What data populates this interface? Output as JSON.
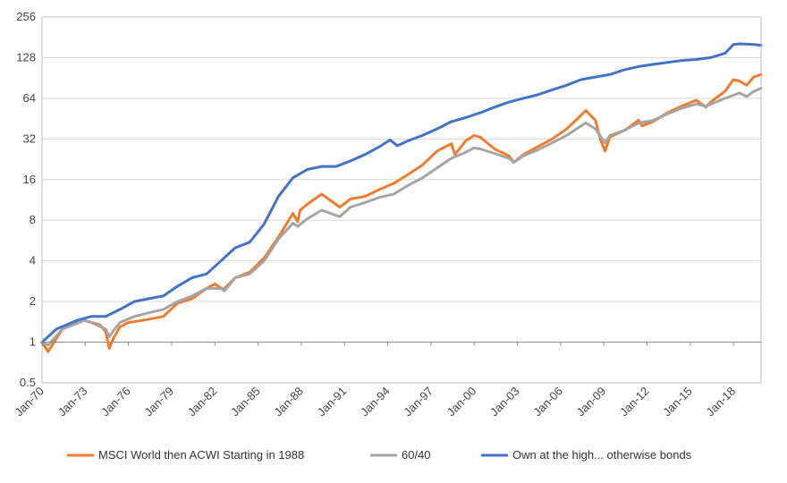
{
  "chart_data": {
    "type": "line",
    "y_scale": "log2",
    "ylim": [
      0.5,
      256
    ],
    "y_ticks": [
      "0.5",
      "1",
      "2",
      "4",
      "8",
      "16",
      "32",
      "64",
      "128",
      "256"
    ],
    "x_ticks": [
      "Jan-70",
      "Jan-73",
      "Jan-76",
      "Jan-79",
      "Jan-82",
      "Jan-85",
      "Jan-88",
      "Jan-91",
      "Jan-94",
      "Jan-97",
      "Jan-00",
      "Jan-03",
      "Jan-06",
      "Jan-09",
      "Jan-12",
      "Jan-15",
      "Jan-18"
    ],
    "xlim": [
      "1970-01",
      "2019-12"
    ],
    "grid": "horizontal",
    "legend_position": "bottom",
    "series": [
      {
        "name": "MSCI World then ACWI Starting in 1988",
        "color": "#ED7D31",
        "x": [
          "1970-01",
          "1970-06",
          "1971-06",
          "1972-12",
          "1973-06",
          "1974-01",
          "1974-06",
          "1974-09",
          "1974-12",
          "1975-06",
          "1976-01",
          "1977-01",
          "1978-06",
          "1979-06",
          "1980-06",
          "1981-06",
          "1982-01",
          "1982-08",
          "1983-06",
          "1984-06",
          "1985-06",
          "1986-06",
          "1987-06",
          "1987-10",
          "1987-12",
          "1988-06",
          "1989-06",
          "1990-09",
          "1991-06",
          "1992-06",
          "1993-06",
          "1994-06",
          "1995-06",
          "1996-06",
          "1997-06",
          "1998-06",
          "1998-09",
          "1999-06",
          "2000-01",
          "2000-06",
          "2001-06",
          "2002-06",
          "2002-10",
          "2003-06",
          "2004-06",
          "2005-06",
          "2006-06",
          "2007-06",
          "2007-10",
          "2008-06",
          "2008-10",
          "2009-02",
          "2009-06",
          "2010-06",
          "2011-06",
          "2011-09",
          "2012-06",
          "2013-06",
          "2014-06",
          "2015-06",
          "2016-02",
          "2016-06",
          "2017-06",
          "2018-01",
          "2018-06",
          "2018-12",
          "2019-06",
          "2019-12"
        ],
        "y": [
          1.0,
          0.85,
          1.25,
          1.45,
          1.4,
          1.35,
          1.2,
          0.9,
          1.05,
          1.3,
          1.4,
          1.45,
          1.55,
          1.95,
          2.1,
          2.5,
          2.7,
          2.45,
          3.0,
          3.3,
          4.2,
          6.0,
          9.0,
          7.8,
          9.5,
          10.5,
          12.5,
          10.0,
          11.5,
          12.0,
          13.5,
          15.0,
          17.5,
          20.5,
          26.0,
          29.5,
          24.5,
          31.0,
          34.0,
          33.0,
          27.0,
          24.0,
          21.5,
          24.5,
          28.0,
          32.0,
          38.0,
          48.0,
          52.0,
          44.0,
          32.0,
          26.0,
          33.0,
          37.0,
          44.0,
          40.0,
          43.0,
          50.0,
          56.0,
          62.0,
          55.0,
          60.0,
          72.0,
          88.0,
          86.0,
          80.0,
          92.0,
          96.0
        ]
      },
      {
        "name": "60/40",
        "color": "#A5A5A5",
        "x": [
          "1970-01",
          "1970-06",
          "1971-06",
          "1972-12",
          "1973-06",
          "1974-06",
          "1974-09",
          "1974-12",
          "1975-06",
          "1976-06",
          "1977-06",
          "1978-06",
          "1979-06",
          "1980-06",
          "1981-06",
          "1982-06",
          "1982-09",
          "1983-06",
          "1984-06",
          "1985-06",
          "1986-06",
          "1987-06",
          "1987-10",
          "1988-06",
          "1989-06",
          "1990-09",
          "1991-06",
          "1992-06",
          "1993-06",
          "1994-06",
          "1995-06",
          "1996-06",
          "1997-06",
          "1998-06",
          "1999-06",
          "2000-01",
          "2000-06",
          "2001-06",
          "2002-06",
          "2002-10",
          "2003-06",
          "2004-06",
          "2005-06",
          "2006-06",
          "2007-06",
          "2007-10",
          "2008-06",
          "2009-02",
          "2009-06",
          "2010-06",
          "2011-06",
          "2012-06",
          "2013-06",
          "2014-06",
          "2015-06",
          "2016-02",
          "2017-06",
          "2018-06",
          "2018-12",
          "2019-06",
          "2019-12"
        ],
        "y": [
          1.0,
          0.95,
          1.25,
          1.45,
          1.4,
          1.25,
          1.1,
          1.2,
          1.4,
          1.55,
          1.65,
          1.75,
          2.0,
          2.2,
          2.5,
          2.5,
          2.4,
          3.0,
          3.2,
          4.0,
          5.8,
          7.6,
          7.2,
          8.2,
          9.5,
          8.5,
          10.0,
          10.8,
          11.8,
          12.5,
          14.5,
          16.5,
          19.5,
          23.0,
          25.5,
          27.5,
          27.0,
          25.0,
          23.0,
          21.5,
          24.0,
          26.5,
          30.0,
          34.0,
          40.0,
          42.0,
          38.0,
          30.0,
          34.0,
          37.0,
          42.0,
          44.0,
          49.0,
          54.0,
          58.0,
          56.0,
          64.0,
          70.0,
          66.0,
          72.0,
          76.0
        ]
      },
      {
        "name": "Own at the high... otherwise bonds",
        "color": "#4472C4",
        "x": [
          "1970-01",
          "1971-01",
          "1972-06",
          "1973-06",
          "1974-06",
          "1975-06",
          "1976-06",
          "1977-06",
          "1978-06",
          "1979-06",
          "1980-06",
          "1981-06",
          "1982-06",
          "1983-06",
          "1984-06",
          "1985-06",
          "1986-06",
          "1987-06",
          "1988-06",
          "1989-06",
          "1990-06",
          "1991-06",
          "1992-06",
          "1993-06",
          "1994-03",
          "1994-09",
          "1995-06",
          "1996-06",
          "1997-06",
          "1998-06",
          "1999-06",
          "2000-06",
          "2001-06",
          "2002-06",
          "2003-06",
          "2004-06",
          "2005-06",
          "2006-06",
          "2007-06",
          "2008-06",
          "2009-06",
          "2010-06",
          "2011-06",
          "2012-06",
          "2013-06",
          "2014-06",
          "2015-06",
          "2016-06",
          "2017-06",
          "2018-01",
          "2018-06",
          "2019-06",
          "2019-12"
        ],
        "y": [
          1.0,
          1.25,
          1.45,
          1.55,
          1.55,
          1.75,
          2.0,
          2.1,
          2.2,
          2.6,
          3.0,
          3.2,
          4.0,
          5.0,
          5.5,
          7.5,
          12.0,
          16.5,
          19.0,
          20.0,
          20.0,
          22.0,
          24.5,
          28.0,
          31.5,
          28.5,
          31.0,
          34.0,
          38.0,
          43.0,
          46.0,
          50.0,
          55.0,
          60.0,
          64.0,
          68.0,
          74.0,
          80.0,
          88.0,
          92.0,
          96.0,
          104.0,
          110.0,
          114.0,
          118.0,
          122.0,
          124.0,
          128.0,
          138.0,
          160.0,
          162.0,
          160.0,
          158.0
        ]
      }
    ]
  }
}
